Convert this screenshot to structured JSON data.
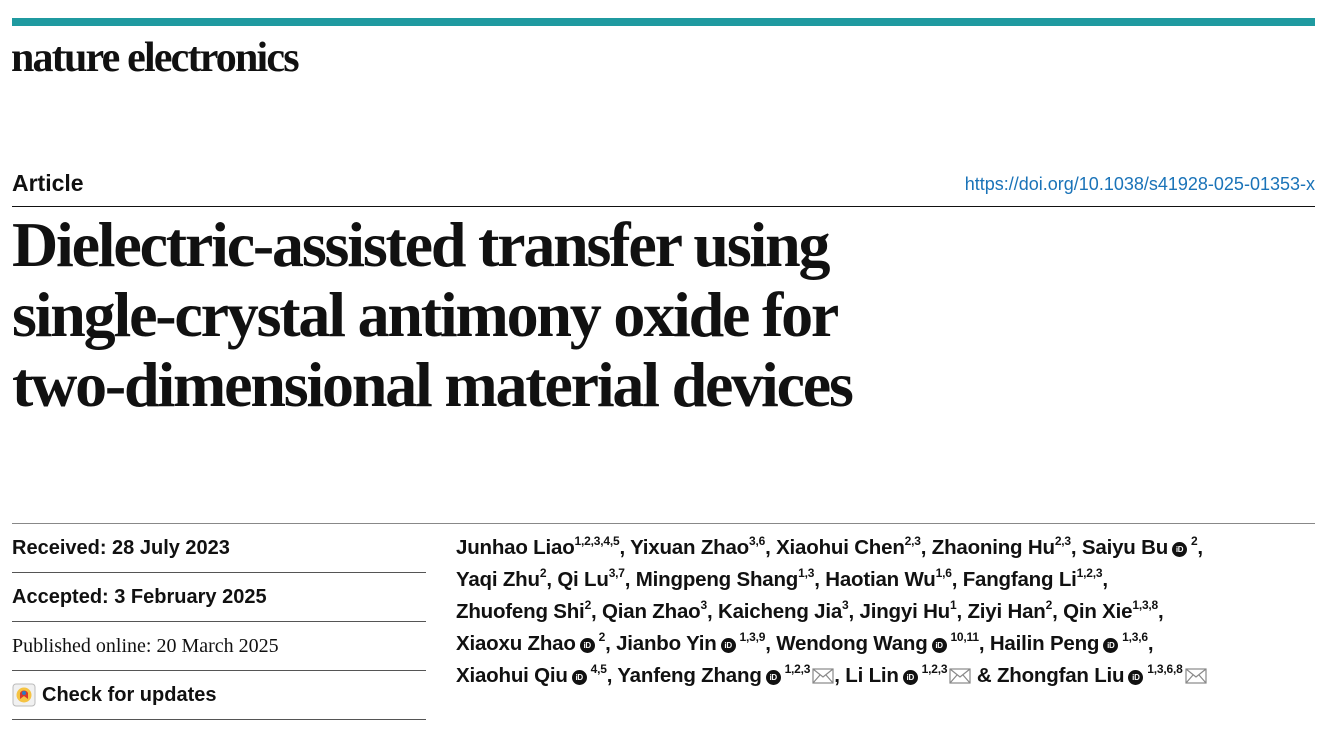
{
  "colors": {
    "accent": "#1f9aa0",
    "doi_link": "#1a73b8"
  },
  "journal": "nature electronics",
  "article_type": "Article",
  "doi": "https://doi.org/10.1038/s41928-025-01353-x",
  "title_lines": [
    "Dielectric-assisted transfer using",
    "single-crystal antimony oxide for",
    "two-dimensional material devices"
  ],
  "dates": {
    "received": "Received: 28 July 2023",
    "accepted": "Accepted: 3 February 2025",
    "published": "Published online: 20 March 2025"
  },
  "check_updates": "Check for updates",
  "authors": [
    {
      "name": "Junhao Liao",
      "aff": "1,2,3,4,5"
    },
    {
      "name": "Yixuan Zhao",
      "aff": "3,6"
    },
    {
      "name": "Xiaohui Chen",
      "aff": "2,3"
    },
    {
      "name": "Zhaoning Hu",
      "aff": "2,3"
    },
    {
      "name": "Saiyu Bu",
      "aff": "2",
      "orcid": true
    },
    {
      "name": "Yaqi Zhu",
      "aff": "2"
    },
    {
      "name": "Qi Lu",
      "aff": "3,7"
    },
    {
      "name": "Mingpeng Shang",
      "aff": "1,3"
    },
    {
      "name": "Haotian Wu",
      "aff": "1,6"
    },
    {
      "name": "Fangfang Li",
      "aff": "1,2,3"
    },
    {
      "name": "Zhuofeng Shi",
      "aff": "2"
    },
    {
      "name": "Qian Zhao",
      "aff": "3"
    },
    {
      "name": "Kaicheng Jia",
      "aff": "3"
    },
    {
      "name": "Jingyi Hu",
      "aff": "1"
    },
    {
      "name": "Ziyi Han",
      "aff": "2"
    },
    {
      "name": "Qin Xie",
      "aff": "1,3,8"
    },
    {
      "name": "Xiaoxu Zhao",
      "aff": "2",
      "orcid": true
    },
    {
      "name": "Jianbo Yin",
      "aff": "1,3,9",
      "orcid": true
    },
    {
      "name": "Wendong Wang",
      "aff": "10,11",
      "orcid": true
    },
    {
      "name": "Hailin Peng",
      "aff": "1,3,6",
      "orcid": true
    },
    {
      "name": "Xiaohui Qiu",
      "aff": "4,5",
      "orcid": true
    },
    {
      "name": "Yanfeng Zhang",
      "aff": "1,2,3",
      "orcid": true,
      "corresponding": true
    },
    {
      "name": "Li Lin",
      "aff": "1,2,3",
      "orcid": true,
      "corresponding": true
    },
    {
      "name": "Zhongfan Liu",
      "aff": "1,3,6,8",
      "orcid": true,
      "corresponding": true
    }
  ],
  "author_lines": [
    [
      0,
      1,
      2,
      3,
      4
    ],
    [
      5,
      6,
      7,
      8,
      9
    ],
    [
      10,
      11,
      12,
      13,
      14,
      15
    ],
    [
      16,
      17,
      18,
      19
    ],
    [
      20,
      21,
      22,
      23
    ]
  ],
  "orcid_label": "iD",
  "icons": {
    "orcid": "orcid-icon",
    "mail": "mail-icon",
    "check": "check-updates-icon"
  }
}
